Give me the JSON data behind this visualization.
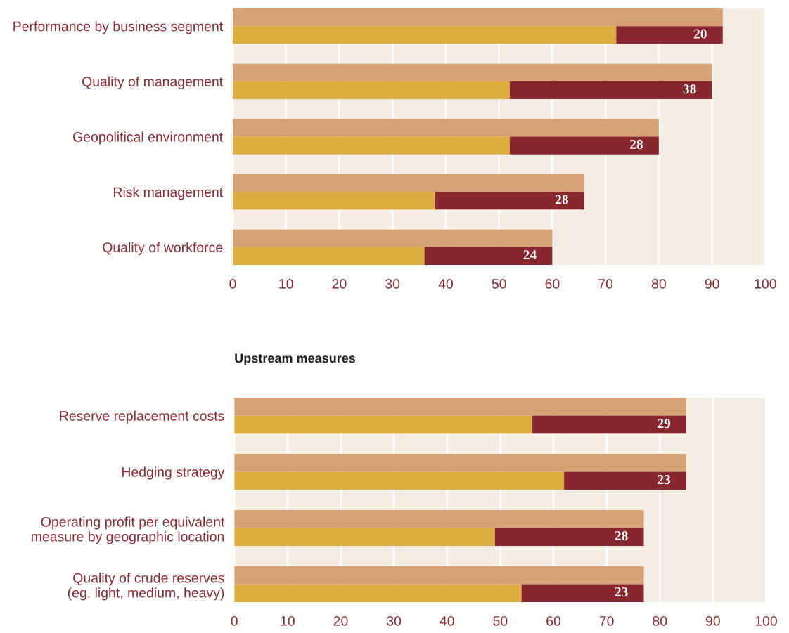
{
  "chart_data": [
    {
      "type": "bar",
      "orientation": "horizontal",
      "categories": [
        "Performance by business segment",
        "Quality of management",
        "Geopolitical environment",
        "Risk management",
        "Quality of workforce"
      ],
      "series": [
        {
          "color": "#d6a174",
          "values": [
            92,
            90,
            80,
            66,
            60
          ]
        }
      ],
      "xlim": [
        0,
        100
      ],
      "xticks": [
        0,
        10,
        20,
        30,
        40,
        50,
        60,
        70,
        80,
        90,
        100
      ],
      "grid": "x"
    },
    {
      "type": "bar",
      "orientation": "horizontal",
      "stacked": true,
      "categories": [
        null,
        null,
        null,
        null,
        null
      ],
      "series": [
        {
          "color": "#dcae42",
          "values": [
            72,
            52,
            52,
            38,
            36
          ]
        },
        {
          "color": "#89272e",
          "values": [
            20,
            38,
            28,
            28,
            24
          ],
          "value_labels": [
            "20",
            "38",
            "28",
            "28",
            "24"
          ]
        }
      ],
      "xlim": [
        0,
        100
      ],
      "xticks": [
        0,
        10,
        20,
        30,
        40,
        50,
        60,
        70,
        80,
        90,
        100
      ],
      "tick_labels": false
    },
    {
      "type": "bar",
      "orientation": "horizontal",
      "title": "Upstream measures",
      "categories": [
        "Reserve replacement costs",
        "Hedging strategy",
        "Operating profit per equivalent\nmeasure by geographic location",
        "Quality of crude reserves\n(eg. light, medium, heavy)"
      ],
      "series": [
        {
          "color": "#d6a174",
          "values": [
            85,
            85,
            77,
            77
          ]
        }
      ],
      "xlim": [
        0,
        100
      ],
      "xticks": [
        0,
        10,
        20,
        30,
        40,
        50,
        60,
        70,
        80,
        90,
        100
      ],
      "grid": "x"
    },
    {
      "type": "bar",
      "orientation": "horizontal",
      "stacked": true,
      "categories": [
        null,
        null,
        null,
        null
      ],
      "series": [
        {
          "color": "#dcae42",
          "values": [
            56,
            62,
            49,
            54
          ]
        },
        {
          "color": "#89272e",
          "values": [
            29,
            23,
            28,
            23
          ],
          "value_labels": [
            "29",
            "23",
            "28",
            "23"
          ]
        }
      ],
      "xlim": [
        0,
        100
      ],
      "xticks": [
        0,
        10,
        20,
        30,
        40,
        50,
        60,
        70,
        80,
        90,
        100
      ],
      "tick_labels": false
    }
  ]
}
